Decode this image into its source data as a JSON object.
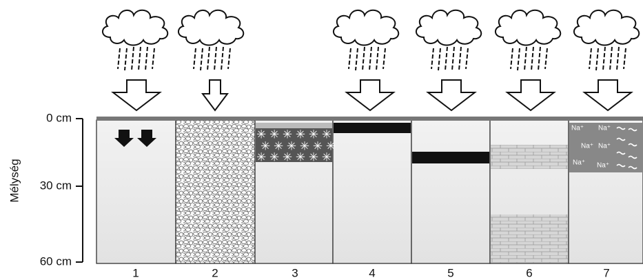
{
  "axis": {
    "title": "Mélység",
    "ticks": [
      "0 cm",
      "30 cm",
      "60 cm"
    ]
  },
  "columns": [
    {
      "label": "1"
    },
    {
      "label": "2"
    },
    {
      "label": "3"
    },
    {
      "label": "4"
    },
    {
      "label": "5"
    },
    {
      "label": "6"
    },
    {
      "label": "7"
    }
  ],
  "ions": [
    "Na⁺",
    "Na⁺",
    "Na⁺",
    "Na⁺",
    "Na⁺",
    "Na⁺"
  ]
}
